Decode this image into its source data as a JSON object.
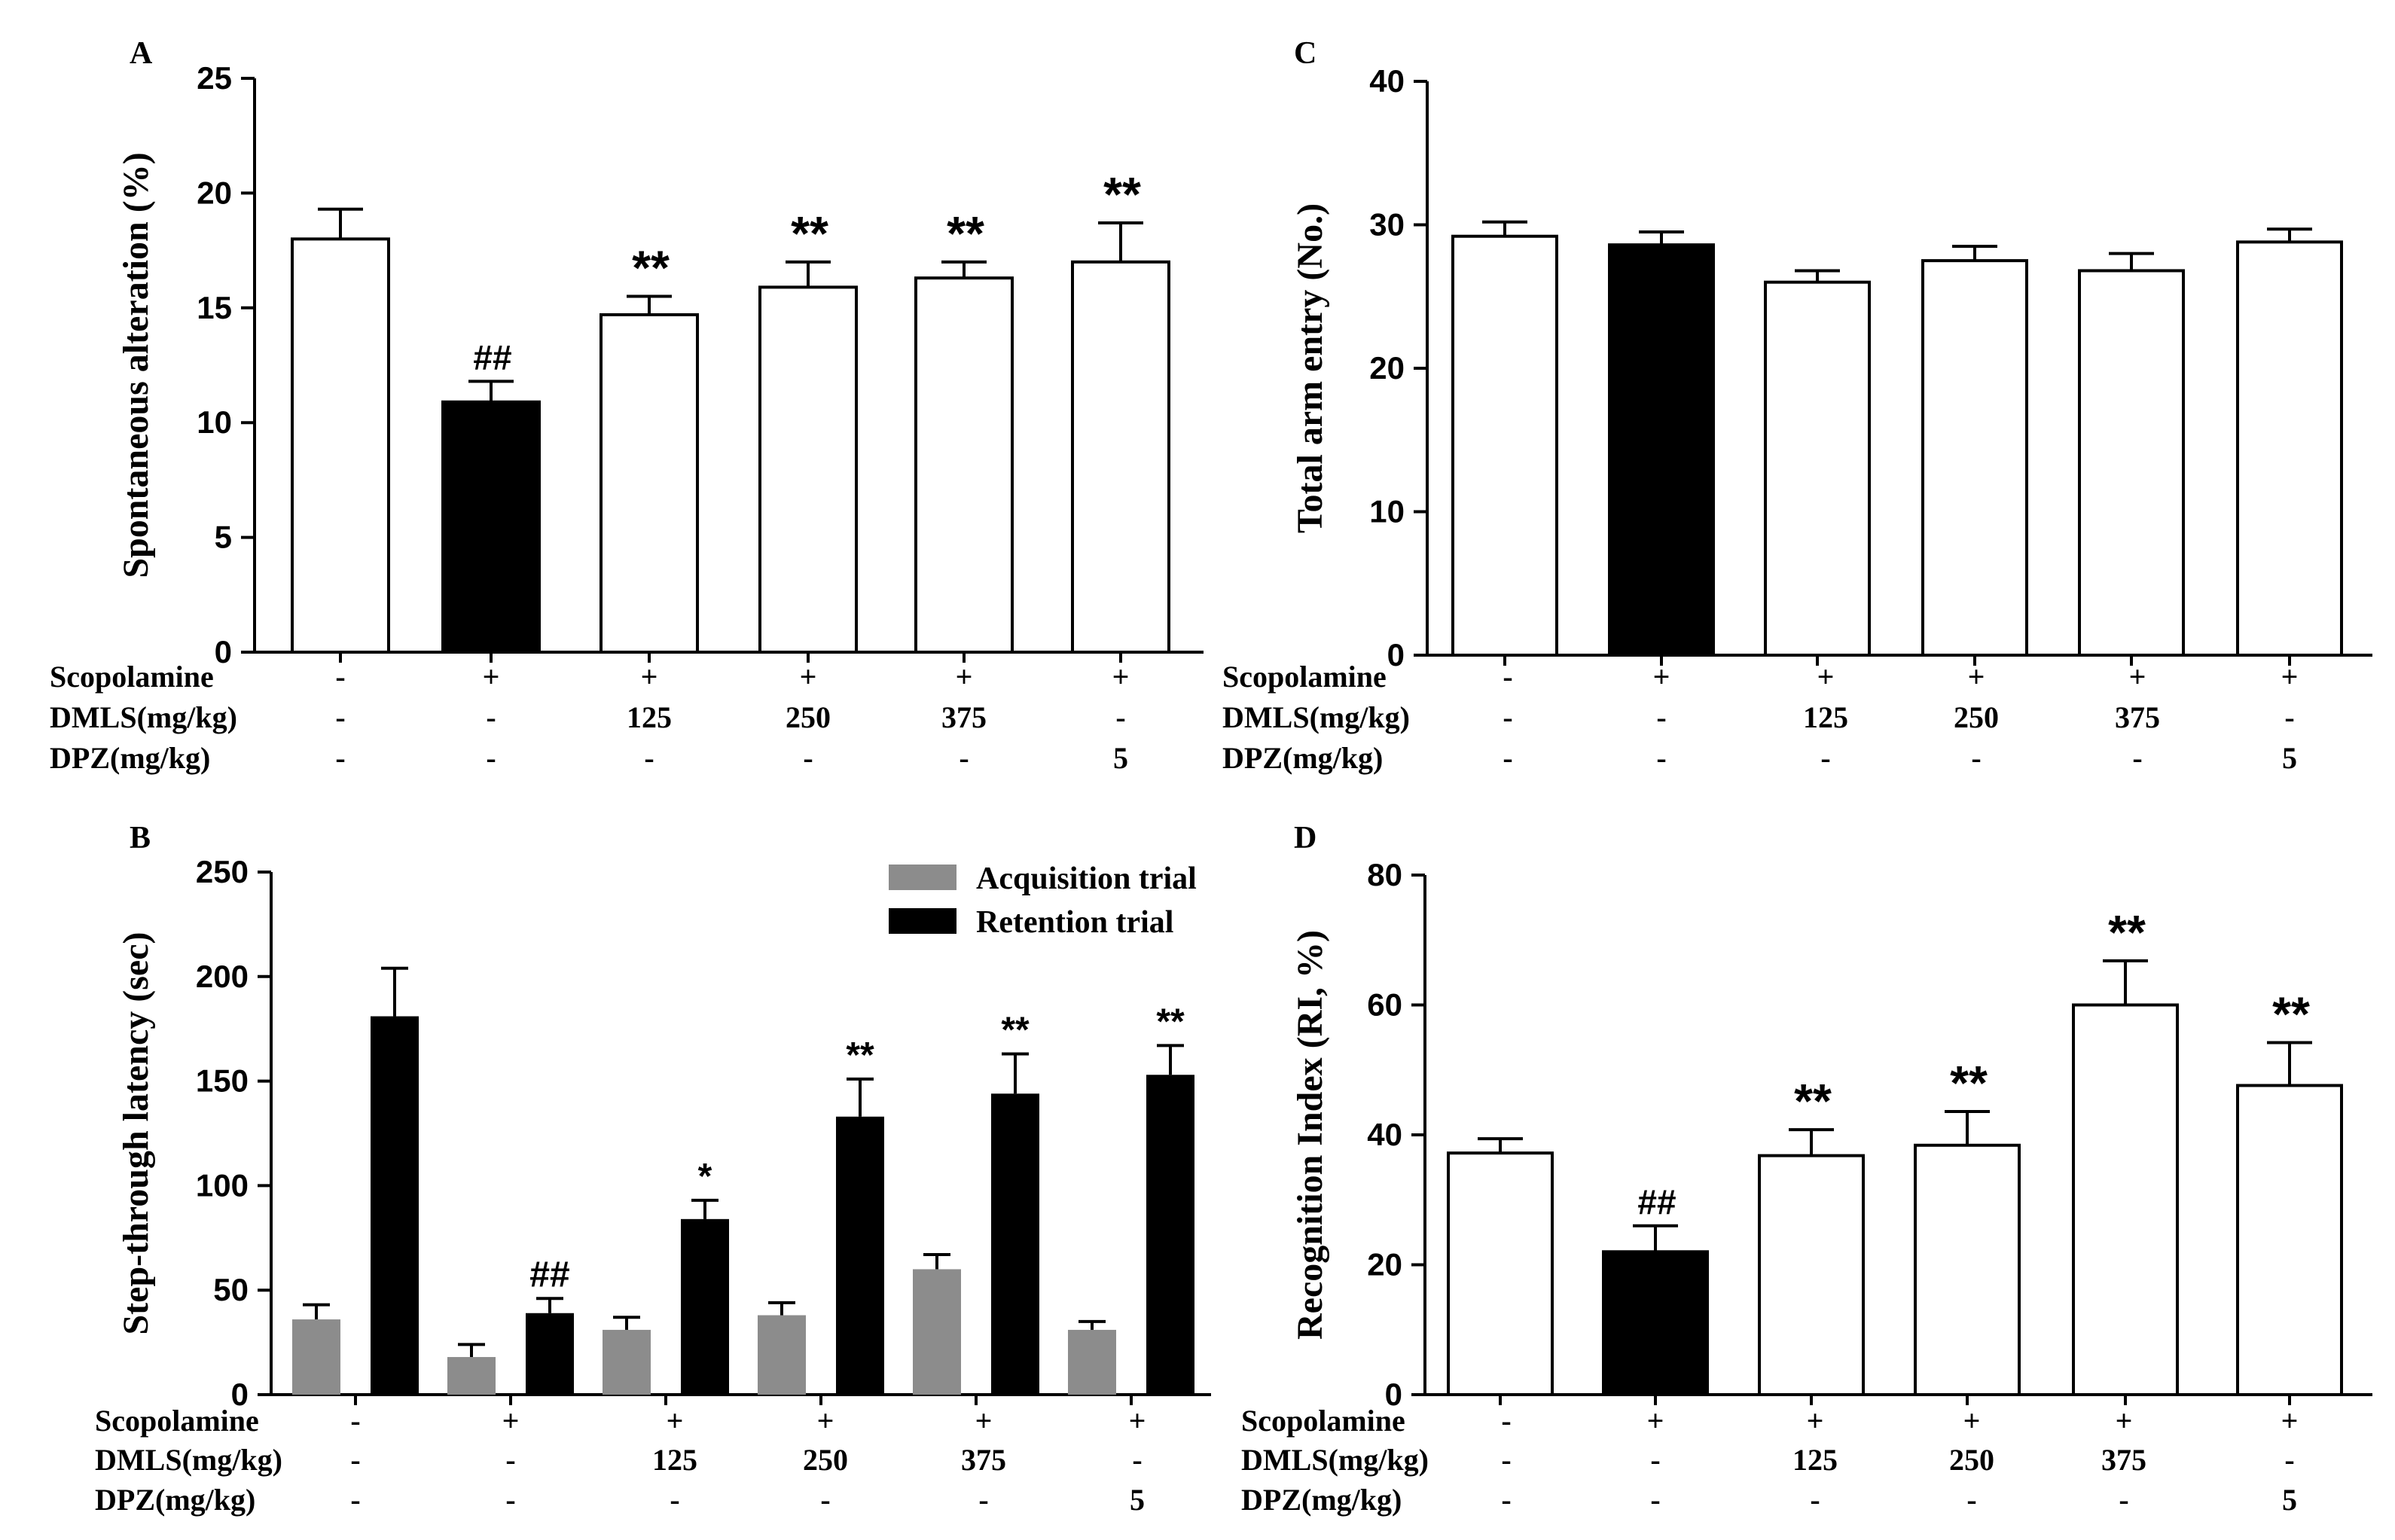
{
  "chart_data": [
    {
      "panel": "A",
      "type": "bar",
      "title": "",
      "xlabel": "",
      "ylabel": "Spontaneous alteration (%)",
      "ylim": [
        0,
        25
      ],
      "yticks": [
        "0",
        "5",
        "10",
        "15",
        "20",
        "25"
      ],
      "categories": [
        "1",
        "2",
        "3",
        "4",
        "5",
        "6"
      ],
      "series": [
        {
          "name": "",
          "values": [
            18.0,
            10.9,
            14.7,
            15.9,
            16.3,
            17.0
          ],
          "errors": [
            1.3,
            0.9,
            0.8,
            1.1,
            0.7,
            1.7
          ],
          "fills": [
            "#ffffff",
            "#000000",
            "#ffffff",
            "#ffffff",
            "#ffffff",
            "#ffffff"
          ]
        }
      ],
      "annotations": [
        "",
        "##",
        "**",
        "**",
        "**",
        "**"
      ],
      "treatment_table": {
        "rows": [
          {
            "label": "Scopolamine",
            "values": [
              "-",
              "+",
              "+",
              "+",
              "+",
              "+"
            ]
          },
          {
            "label": "DMLS(mg/kg)",
            "values": [
              "-",
              "-",
              "125",
              "250",
              "375",
              "-"
            ]
          },
          {
            "label": "DPZ(mg/kg)",
            "values": [
              "-",
              "-",
              "-",
              "-",
              "-",
              "5"
            ]
          }
        ]
      }
    },
    {
      "panel": "C",
      "type": "bar",
      "title": "",
      "xlabel": "",
      "ylabel": "Total arm entry (No.)",
      "ylim": [
        0,
        40
      ],
      "yticks": [
        "0",
        "10",
        "20",
        "30",
        "40"
      ],
      "categories": [
        "1",
        "2",
        "3",
        "4",
        "5",
        "6"
      ],
      "series": [
        {
          "name": "",
          "values": [
            29.2,
            28.6,
            26.0,
            27.5,
            26.8,
            28.8
          ],
          "errors": [
            1.0,
            0.9,
            0.8,
            1.0,
            1.2,
            0.9
          ],
          "fills": [
            "#ffffff",
            "#000000",
            "#ffffff",
            "#ffffff",
            "#ffffff",
            "#ffffff"
          ]
        }
      ],
      "annotations": [
        "",
        "",
        "",
        "",
        "",
        ""
      ],
      "treatment_table": {
        "rows": [
          {
            "label": "Scopolamine",
            "values": [
              "-",
              "+",
              "+",
              "+",
              "+",
              "+"
            ]
          },
          {
            "label": "DMLS(mg/kg)",
            "values": [
              "-",
              "-",
              "125",
              "250",
              "375",
              "-"
            ]
          },
          {
            "label": "DPZ(mg/kg)",
            "values": [
              "-",
              "-",
              "-",
              "-",
              "-",
              "5"
            ]
          }
        ]
      }
    },
    {
      "panel": "B",
      "type": "bar",
      "title": "",
      "xlabel": "",
      "ylabel": "Step-through latency (sec)",
      "ylim": [
        0,
        250
      ],
      "yticks": [
        "0",
        "50",
        "100",
        "150",
        "200",
        "250"
      ],
      "categories": [
        "1",
        "2",
        "3",
        "4",
        "5",
        "6"
      ],
      "legend": {
        "position": "top-right",
        "entries": [
          "Acquisition trial",
          "Retention trial"
        ]
      },
      "series": [
        {
          "name": "Acquisition trial",
          "color": "#8c8c8c",
          "values": [
            36,
            18,
            31,
            38,
            60,
            31
          ],
          "errors": [
            7,
            6,
            6,
            6,
            7,
            4
          ]
        },
        {
          "name": "Retention trial",
          "color": "#000000",
          "values": [
            181,
            0,
            84,
            133,
            144,
            153
          ],
          "errors": [
            23,
            0,
            9,
            18,
            19,
            14
          ]
        }
      ],
      "series_note": "Group 2 retention value shown by separate bar",
      "retention_values": [
        181,
        39,
        84,
        133,
        144,
        153
      ],
      "retention_errors": [
        23,
        7,
        9,
        18,
        19,
        14
      ],
      "annotations": [
        "",
        "##",
        "*",
        "**",
        "**",
        "**"
      ],
      "treatment_table": {
        "rows": [
          {
            "label": "Scopolamine",
            "values": [
              "-",
              "+",
              "+",
              "+",
              "+",
              "+"
            ]
          },
          {
            "label": "DMLS(mg/kg)",
            "values": [
              "-",
              "-",
              "125",
              "250",
              "375",
              "-"
            ]
          },
          {
            "label": "DPZ(mg/kg)",
            "values": [
              "-",
              "-",
              "-",
              "-",
              "-",
              "5"
            ]
          }
        ]
      }
    },
    {
      "panel": "D",
      "type": "bar",
      "title": "",
      "xlabel": "",
      "ylabel": "Recognition Index (RI, %)",
      "ylim": [
        0,
        80
      ],
      "yticks": [
        "0",
        "20",
        "40",
        "60",
        "80"
      ],
      "categories": [
        "1",
        "2",
        "3",
        "4",
        "5",
        "6"
      ],
      "series": [
        {
          "name": "",
          "values": [
            37.2,
            22.0,
            36.8,
            38.4,
            60.0,
            47.6
          ],
          "errors": [
            2.2,
            4.0,
            4.0,
            5.2,
            6.8,
            6.6
          ],
          "fills": [
            "#ffffff",
            "#000000",
            "#ffffff",
            "#ffffff",
            "#ffffff",
            "#ffffff"
          ]
        }
      ],
      "annotations": [
        "",
        "##",
        "**",
        "**",
        "**",
        "**"
      ],
      "treatment_table": {
        "rows": [
          {
            "label": "Scopolamine",
            "values": [
              "-",
              "+",
              "+",
              "+",
              "+",
              "+"
            ]
          },
          {
            "label": "DMLS(mg/kg)",
            "values": [
              "-",
              "-",
              "125",
              "250",
              "375",
              "-"
            ]
          },
          {
            "label": "DPZ(mg/kg)",
            "values": [
              "-",
              "-",
              "-",
              "-",
              "-",
              "5"
            ]
          }
        ]
      }
    }
  ]
}
